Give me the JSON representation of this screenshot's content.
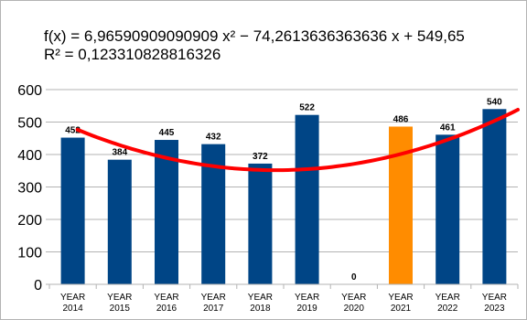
{
  "chart_data": {
    "type": "bar",
    "title": "",
    "xlabel": "",
    "ylabel": "",
    "ylim": [
      0,
      600
    ],
    "yticks": [
      0,
      100,
      200,
      300,
      400,
      500,
      600
    ],
    "grid": true,
    "legend": "none",
    "categories": [
      [
        "YEAR",
        "2014"
      ],
      [
        "YEAR",
        "2015"
      ],
      [
        "YEAR",
        "2016"
      ],
      [
        "YEAR",
        "2017"
      ],
      [
        "YEAR",
        "2018"
      ],
      [
        "YEAR",
        "2019"
      ],
      [
        "YEAR",
        "2020"
      ],
      [
        "YEAR",
        "2021"
      ],
      [
        "YEAR",
        "2022"
      ],
      [
        "YEAR",
        "2023"
      ]
    ],
    "values": [
      452,
      384,
      445,
      432,
      372,
      522,
      0,
      486,
      461,
      540
    ],
    "data_labels": [
      "452",
      "384",
      "445",
      "432",
      "372",
      "522",
      "0",
      "486",
      "461",
      "540"
    ],
    "bar_colors": [
      "#004586",
      "#004586",
      "#004586",
      "#004586",
      "#004586",
      "#004586",
      "#004586",
      "#ff8c00",
      "#004586",
      "#004586"
    ],
    "trendline": {
      "type": "polynomial",
      "order": 2,
      "coefficients": [
        6.96590909090909,
        -74.2613636363636,
        549.65
      ],
      "color": "#ff0000",
      "equation": "f(x) = 6,96590909090909 x² − 74,2613636363636 x + 549,65",
      "r_squared": "R² = 0,123310828816326"
    }
  }
}
